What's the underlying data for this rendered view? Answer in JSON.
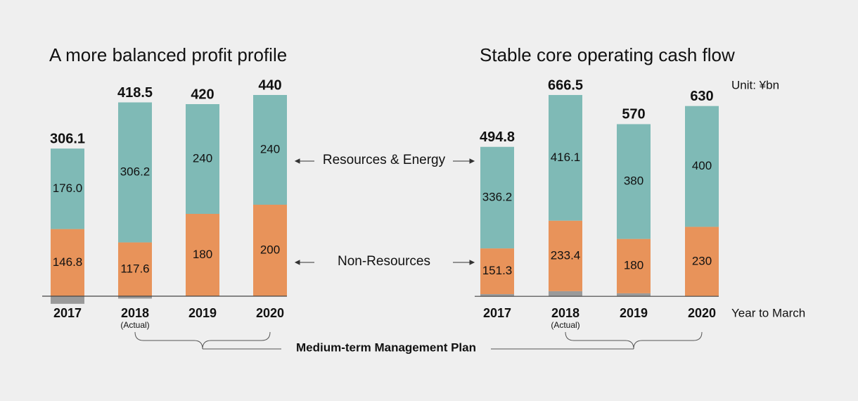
{
  "chart_data": [
    {
      "type": "bar",
      "stacked": true,
      "title": "A more balanced profit profile",
      "categories": [
        "2017",
        "2018",
        "2019",
        "2020"
      ],
      "category_notes": [
        null,
        "(Actual)",
        null,
        null
      ],
      "series": [
        {
          "name": "Resources & Energy",
          "color": "#7fbab6",
          "values": [
            176.0,
            306.2,
            240,
            240
          ],
          "value_labels": [
            "176.0",
            "306.2",
            "240",
            "240"
          ]
        },
        {
          "name": "Non-Resources",
          "color": "#e8935a",
          "values": [
            146.8,
            117.6,
            180,
            200
          ],
          "value_labels": [
            "146.8",
            "117.6",
            "180",
            "200"
          ]
        },
        {
          "name": null,
          "color": "#9a9a9a",
          "values": [
            -16.7,
            -5.3,
            0,
            0
          ]
        }
      ],
      "totals": [
        306.1,
        418.5,
        420,
        440
      ],
      "ylim": [
        -30,
        470
      ]
    },
    {
      "type": "bar",
      "stacked": true,
      "title": "Stable core operating cash flow",
      "categories": [
        "2017",
        "2018",
        "2019",
        "2020"
      ],
      "category_notes": [
        null,
        "(Actual)",
        null,
        null
      ],
      "series": [
        {
          "name": "Resources & Energy",
          "color": "#7fbab6",
          "values": [
            336.2,
            416.1,
            380,
            400
          ],
          "value_labels": [
            "336.2",
            "416.1",
            "380",
            "400"
          ]
        },
        {
          "name": "Non-Resources",
          "color": "#e8935a",
          "values": [
            151.3,
            233.4,
            180,
            230
          ],
          "value_labels": [
            "151.3",
            "233.4",
            "180",
            "230"
          ]
        },
        {
          "name": null,
          "color": "#9a9a9a",
          "values": [
            7.3,
            17.0,
            10,
            0
          ]
        }
      ],
      "totals": [
        494.8,
        666.5,
        570,
        630
      ],
      "ylim": [
        -45,
        712
      ]
    }
  ],
  "unit": "Unit: ¥bn",
  "x_axis_label": "Year to March",
  "plan_label": "Medium-term Management Plan"
}
